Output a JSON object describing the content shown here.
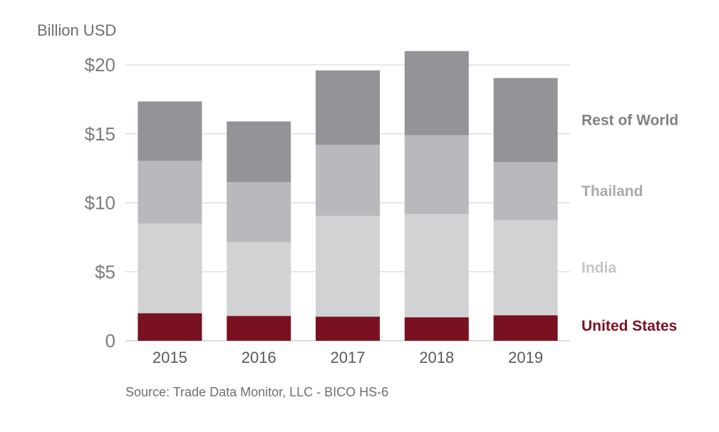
{
  "chart_data": {
    "type": "bar",
    "stacked": true,
    "ylabel": "Billion USD",
    "source": "Source: Trade Data Monitor, LLC - BICO HS-6",
    "categories": [
      "2015",
      "2016",
      "2017",
      "2018",
      "2019"
    ],
    "ylim": [
      0,
      20
    ],
    "yticks": [
      0,
      5,
      10,
      15,
      20
    ],
    "ytick_labels": [
      "0",
      "$5",
      "$10",
      "$15",
      "$20"
    ],
    "grid": true,
    "legend_position": "right",
    "series": [
      {
        "name": "United States",
        "color": "#7a1120",
        "label_color": "#7a1120",
        "values": [
          2.0,
          1.8,
          1.75,
          1.7,
          1.85
        ]
      },
      {
        "name": "India",
        "color": "#d1d2d4",
        "label_color": "#c4c5c7",
        "values": [
          6.5,
          5.35,
          7.3,
          7.5,
          6.9
        ]
      },
      {
        "name": "Thailand",
        "color": "#b8b9bc",
        "label_color": "#a9aaad",
        "values": [
          4.55,
          4.35,
          5.15,
          5.7,
          4.2
        ]
      },
      {
        "name": "Rest of World",
        "color": "#939497",
        "label_color": "#808184",
        "values": [
          4.3,
          4.4,
          5.4,
          6.1,
          6.1
        ]
      }
    ]
  }
}
